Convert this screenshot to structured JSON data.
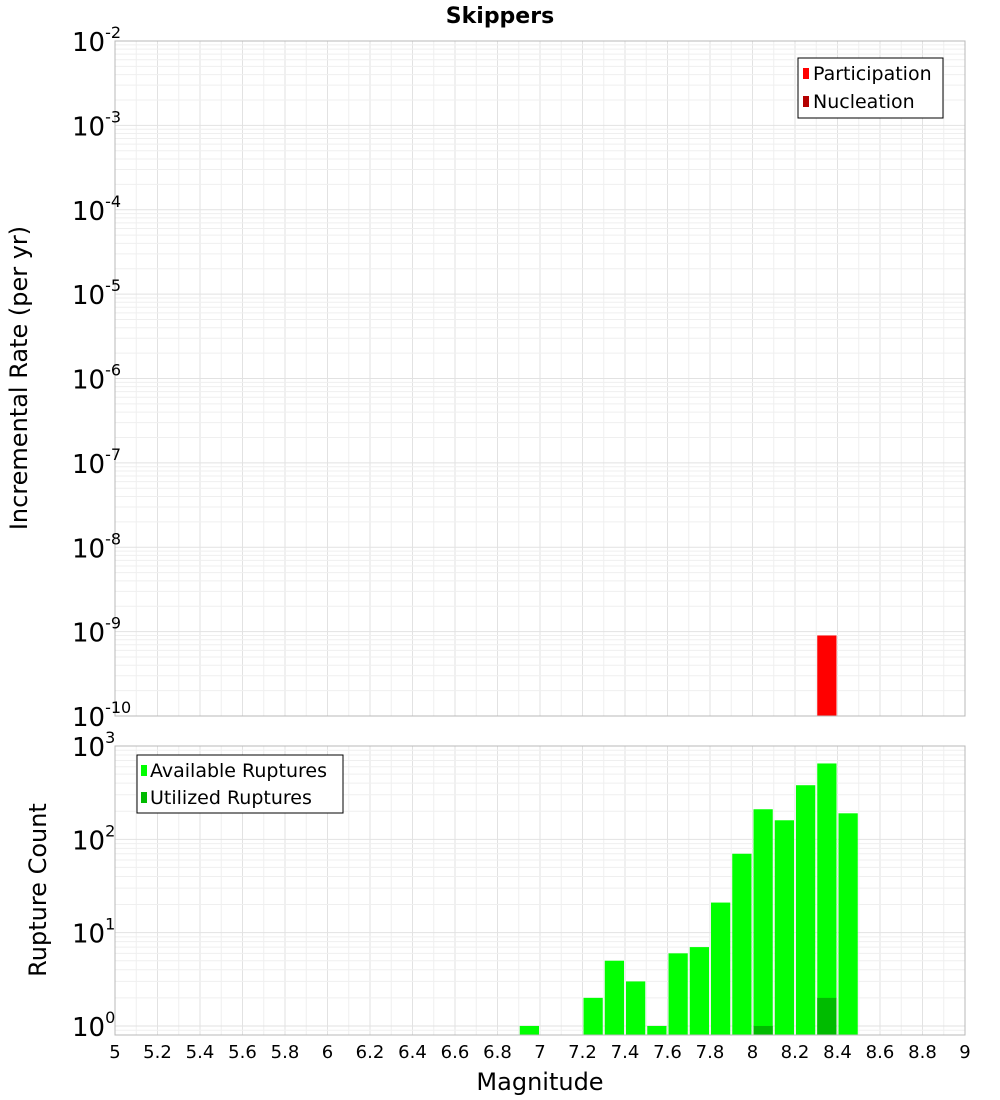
{
  "colors": {
    "participation": "#ff0000",
    "nucleation": "#b40000",
    "available": "#00ff00",
    "utilized": "#00bb00"
  },
  "chart_data": [
    {
      "type": "bar",
      "title": "Skippers",
      "xlabel": "",
      "ylabel": "Incremental Rate (per yr)",
      "yscale": "log",
      "ylim": [
        1e-10,
        0.01
      ],
      "ytick_labels": [
        {
          "base": "10",
          "exp": "-2"
        },
        {
          "base": "10",
          "exp": "-3"
        },
        {
          "base": "10",
          "exp": "-4"
        },
        {
          "base": "10",
          "exp": "-5"
        },
        {
          "base": "10",
          "exp": "-6"
        },
        {
          "base": "10",
          "exp": "-7"
        },
        {
          "base": "10",
          "exp": "-8"
        },
        {
          "base": "10",
          "exp": "-9"
        },
        {
          "base": "10",
          "exp": "-10"
        }
      ],
      "xlim": [
        5,
        9
      ],
      "bin_width": 0.1,
      "legend": {
        "position": "top-right",
        "entries": [
          "Participation",
          "Nucleation"
        ]
      },
      "series": [
        {
          "name": "Participation",
          "x": [
            8.35
          ],
          "values": [
            9e-10
          ]
        },
        {
          "name": "Nucleation",
          "x": [],
          "values": []
        }
      ]
    },
    {
      "type": "bar",
      "title": "",
      "xlabel": "Magnitude",
      "ylabel": "Rupture Count",
      "yscale": "log",
      "ylim": [
        0.8,
        1000
      ],
      "ytick_labels": [
        {
          "base": "10",
          "exp": "3"
        },
        {
          "base": "10",
          "exp": "2"
        },
        {
          "base": "10",
          "exp": "1"
        },
        {
          "base": "10",
          "exp": "0"
        }
      ],
      "xlim": [
        5,
        9
      ],
      "xtick_labels": [
        "5",
        "5.2",
        "5.4",
        "5.6",
        "5.8",
        "6",
        "6.2",
        "6.4",
        "6.6",
        "6.8",
        "7",
        "7.2",
        "7.4",
        "7.6",
        "7.8",
        "8",
        "8.2",
        "8.4",
        "8.6",
        "8.8",
        "9"
      ],
      "bin_width": 0.1,
      "legend": {
        "position": "top-left",
        "entries": [
          "Available Ruptures",
          "Utilized Ruptures"
        ]
      },
      "series": [
        {
          "name": "Available Ruptures",
          "x": [
            6.95,
            7.25,
            7.35,
            7.45,
            7.55,
            7.65,
            7.75,
            7.85,
            7.95,
            8.05,
            8.15,
            8.25,
            8.35,
            8.45
          ],
          "values": [
            1,
            2,
            5,
            3,
            1,
            6,
            7,
            21,
            70,
            210,
            160,
            380,
            650,
            190
          ]
        },
        {
          "name": "Utilized Ruptures",
          "x": [
            8.05,
            8.35
          ],
          "values": [
            1,
            2
          ]
        }
      ]
    }
  ]
}
